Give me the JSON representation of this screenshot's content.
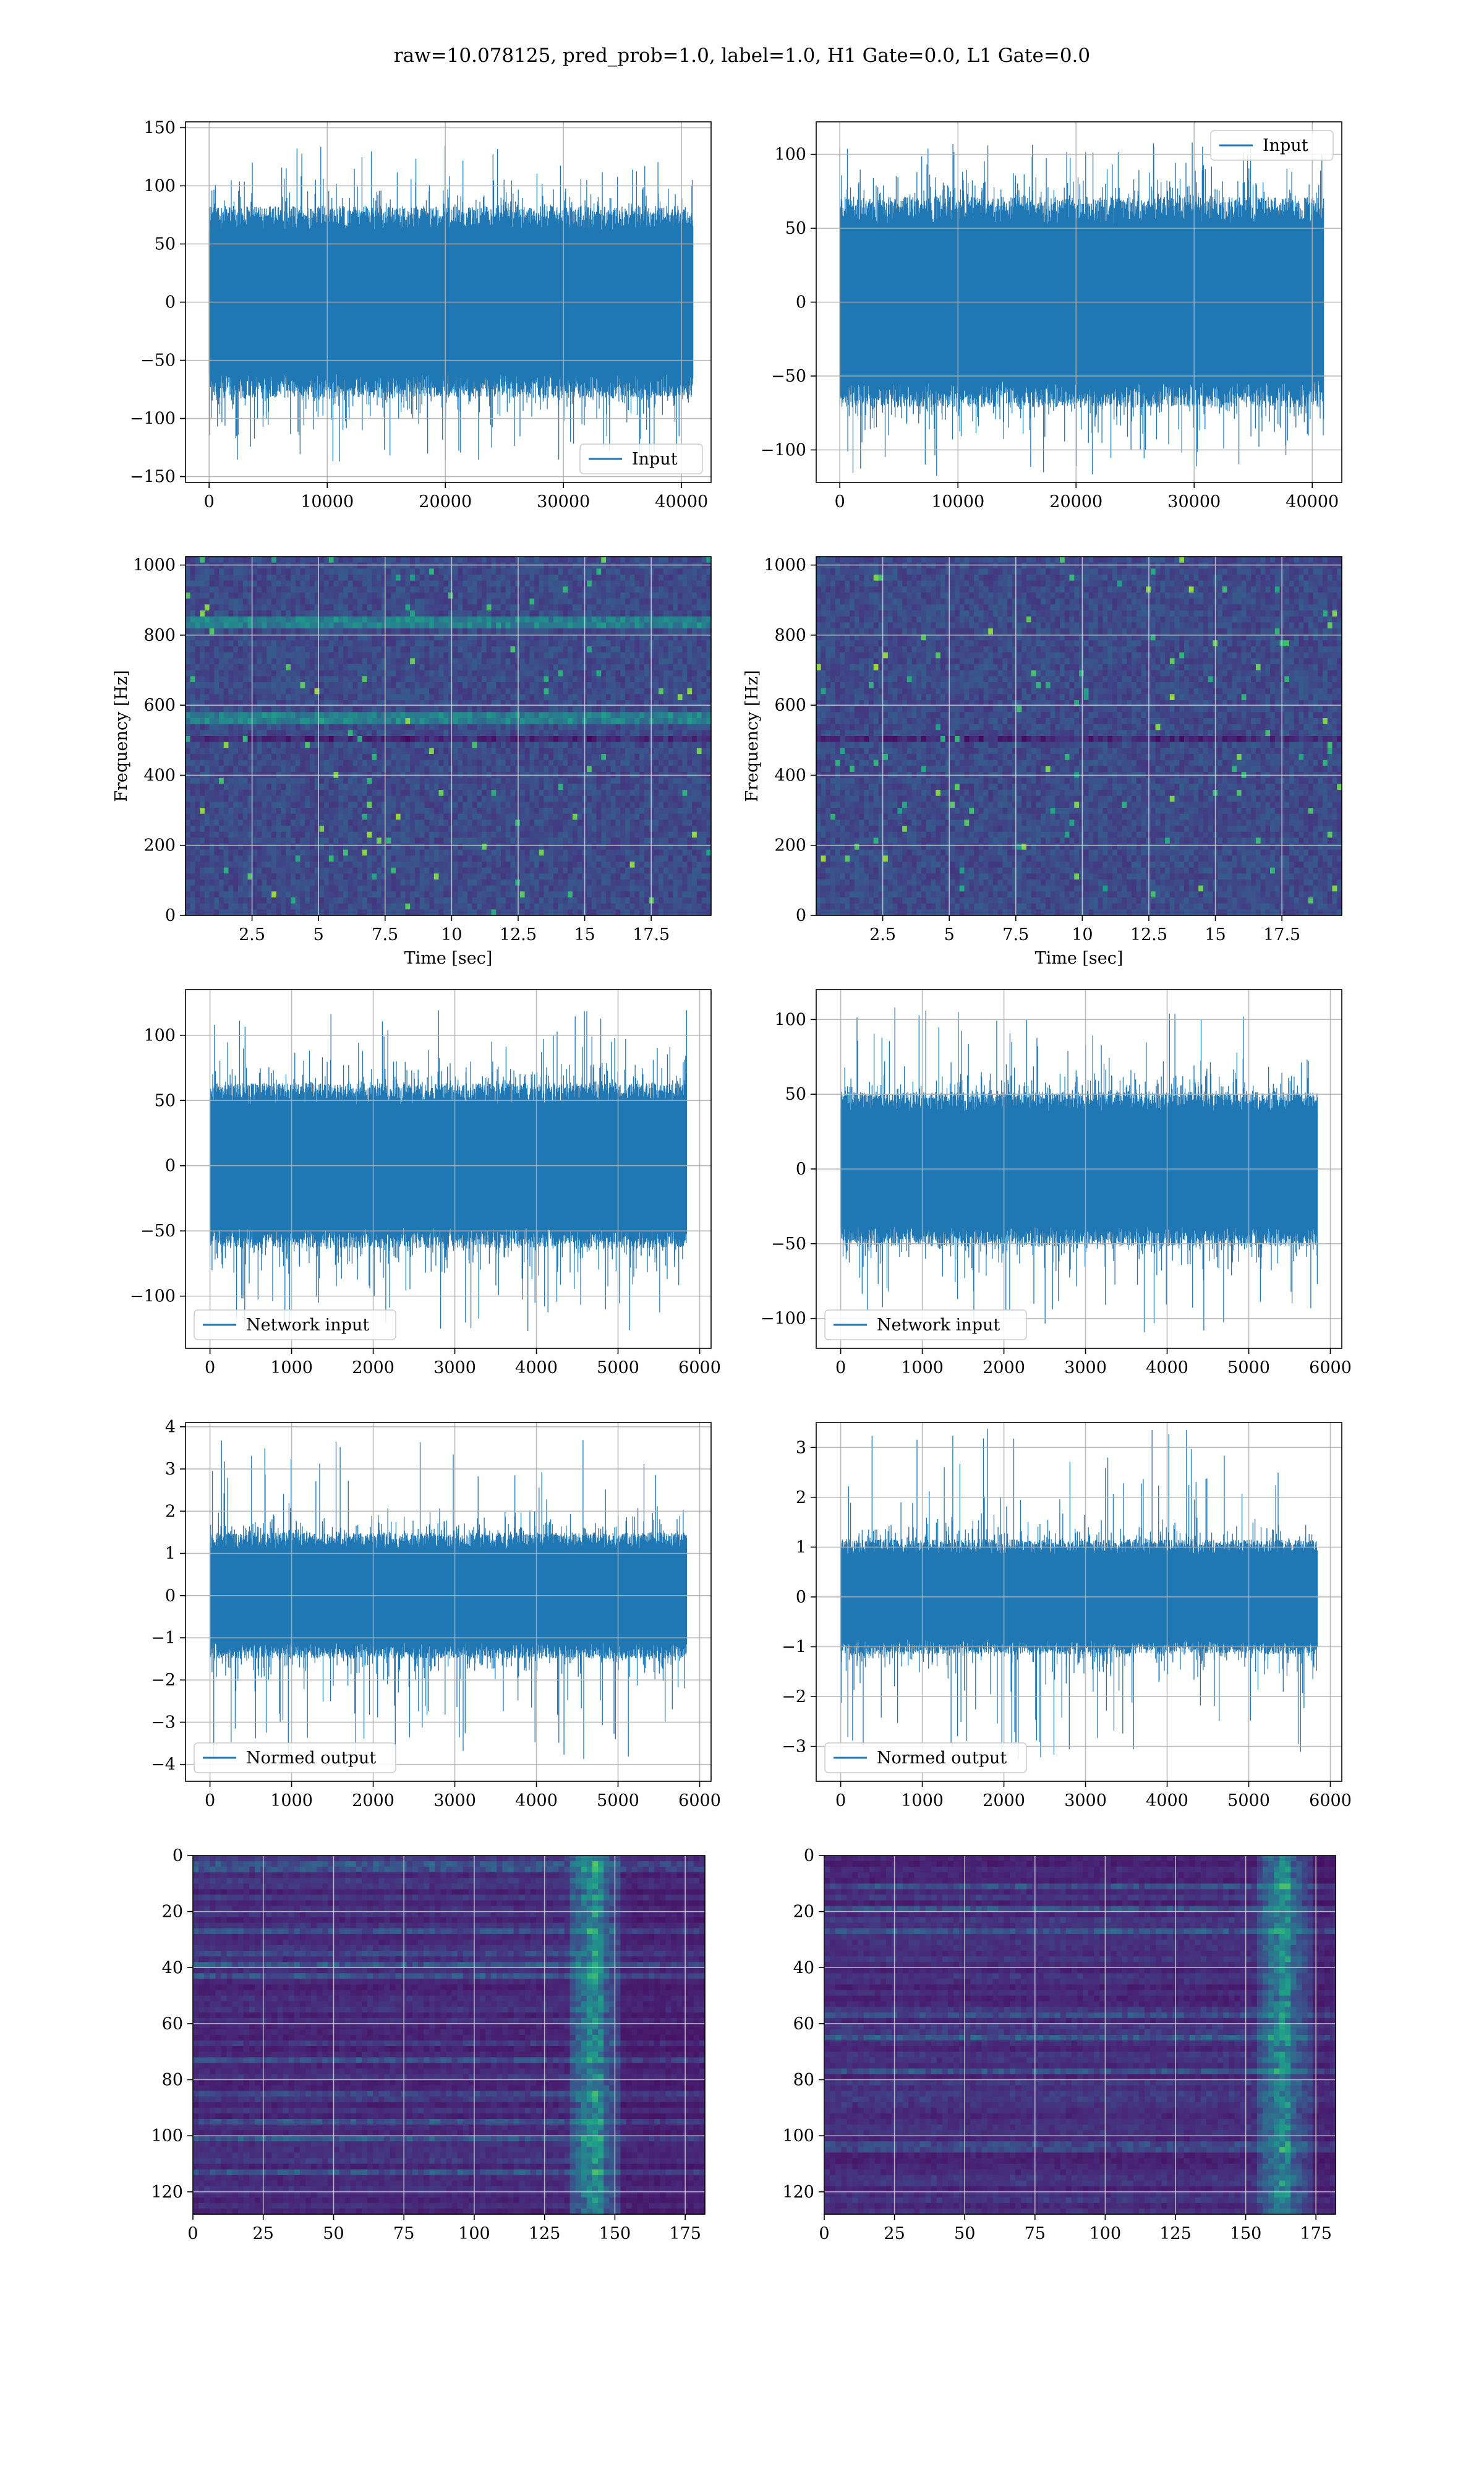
{
  "figure": {
    "title": "raw=10.078125, pred_prob=1.0, label=1.0, H1 Gate=0.0, L1 Gate=0.0"
  },
  "colors": {
    "line": "#1f77b4",
    "grid": "#b0b0b0",
    "axes": "#000000",
    "viridis_dark": "#440154",
    "viridis_bg": "#3b0f70",
    "viridis_teal": "#21918c",
    "viridis_green": "#5ec962",
    "viridis_yellow": "#fde725"
  },
  "chart_data": [
    {
      "id": "input-h1",
      "type": "line",
      "legend": "Input",
      "legend_loc": "lower-right",
      "xlabel": "",
      "ylabel": "",
      "xlim": [
        -2000,
        42500
      ],
      "ylim": [
        -155,
        155
      ],
      "xticks": [
        0,
        10000,
        20000,
        30000,
        40000
      ],
      "yticks": [
        -150,
        -100,
        -50,
        0,
        50,
        100,
        150
      ],
      "series": [
        {
          "x_range": [
            0,
            40960
          ],
          "core": 72,
          "peak_max": 135,
          "peak_min": -140
        }
      ]
    },
    {
      "id": "input-l1",
      "type": "line",
      "legend": "Input",
      "legend_loc": "upper-right",
      "xlabel": "",
      "ylabel": "",
      "xlim": [
        -2000,
        42500
      ],
      "ylim": [
        -122,
        122
      ],
      "xticks": [
        0,
        10000,
        20000,
        30000,
        40000
      ],
      "yticks": [
        -100,
        -50,
        0,
        50,
        100
      ],
      "series": [
        {
          "x_range": [
            0,
            40960
          ],
          "core": 62,
          "peak_max": 108,
          "peak_min": -118
        }
      ]
    },
    {
      "id": "spectrogram-h1",
      "type": "heatmap",
      "xlabel": "Time [sec]",
      "ylabel": "Frequency [Hz]",
      "xlim": [
        0,
        19.75
      ],
      "ylim": [
        0,
        1024
      ],
      "xticks": [
        2.5,
        5.0,
        7.5,
        10.0,
        12.5,
        15.0,
        17.5
      ],
      "yticks": [
        0,
        200,
        400,
        600,
        800,
        1000
      ],
      "bright_lines_hz": [
        840,
        560
      ],
      "dark_lines_hz": [
        500
      ]
    },
    {
      "id": "spectrogram-l1",
      "type": "heatmap",
      "xlabel": "Time [sec]",
      "ylabel": "Frequency [Hz]",
      "xlim": [
        0,
        19.75
      ],
      "ylim": [
        0,
        1024
      ],
      "xticks": [
        2.5,
        5.0,
        7.5,
        10.0,
        12.5,
        15.0,
        17.5
      ],
      "yticks": [
        0,
        200,
        400,
        600,
        800,
        1000
      ],
      "bright_lines_hz": [],
      "dark_lines_hz": [
        500
      ]
    },
    {
      "id": "network-input-h1",
      "type": "line",
      "legend": "Network input",
      "legend_loc": "lower-left",
      "xlabel": "",
      "ylabel": "",
      "xlim": [
        -300,
        6140
      ],
      "ylim": [
        -140,
        135
      ],
      "xticks": [
        0,
        1000,
        2000,
        3000,
        4000,
        5000,
        6000
      ],
      "yticks": [
        -100,
        -50,
        0,
        50,
        100
      ],
      "series": [
        {
          "x_range": [
            0,
            5840
          ],
          "core": 55,
          "peak_max": 120,
          "peak_min": -128
        }
      ]
    },
    {
      "id": "network-input-l1",
      "type": "line",
      "legend": "Network input",
      "legend_loc": "lower-left",
      "xlabel": "",
      "ylabel": "",
      "xlim": [
        -300,
        6140
      ],
      "ylim": [
        -120,
        120
      ],
      "xticks": [
        0,
        1000,
        2000,
        3000,
        4000,
        5000,
        6000
      ],
      "yticks": [
        -100,
        -50,
        0,
        50,
        100
      ],
      "series": [
        {
          "x_range": [
            0,
            5840
          ],
          "core": 45,
          "peak_max": 112,
          "peak_min": -110
        }
      ]
    },
    {
      "id": "normed-output-h1",
      "type": "line",
      "legend": "Normed output",
      "legend_loc": "lower-left",
      "xlabel": "",
      "ylabel": "",
      "xlim": [
        -300,
        6140
      ],
      "ylim": [
        -4.4,
        4.1
      ],
      "xticks": [
        0,
        1000,
        2000,
        3000,
        4000,
        5000,
        6000
      ],
      "yticks": [
        -4,
        -3,
        -2,
        -1,
        0,
        1,
        2,
        3,
        4
      ],
      "series": [
        {
          "x_range": [
            0,
            5840
          ],
          "core": 1.3,
          "peak_max": 3.7,
          "peak_min": -4.0
        }
      ]
    },
    {
      "id": "normed-output-l1",
      "type": "line",
      "legend": "Normed output",
      "legend_loc": "lower-left",
      "xlabel": "",
      "ylabel": "",
      "xlim": [
        -300,
        6140
      ],
      "ylim": [
        -3.7,
        3.5
      ],
      "xticks": [
        0,
        1000,
        2000,
        3000,
        4000,
        5000,
        6000
      ],
      "yticks": [
        -3,
        -2,
        -1,
        0,
        1,
        2,
        3
      ],
      "series": [
        {
          "x_range": [
            0,
            5840
          ],
          "core": 1.0,
          "peak_max": 3.4,
          "peak_min": -3.35
        }
      ]
    },
    {
      "id": "feature-map-h1",
      "type": "heatmap",
      "xlabel": "",
      "ylabel": "",
      "xlim": [
        0,
        182
      ],
      "ylim": [
        128,
        0
      ],
      "xticks": [
        0,
        25,
        50,
        75,
        100,
        125,
        150,
        175
      ],
      "yticks": [
        0,
        20,
        40,
        60,
        80,
        100,
        120
      ],
      "bright_column": 142
    },
    {
      "id": "feature-map-l1",
      "type": "heatmap",
      "xlabel": "",
      "ylabel": "",
      "xlim": [
        0,
        182
      ],
      "ylim": [
        128,
        0
      ],
      "xticks": [
        0,
        25,
        50,
        75,
        100,
        125,
        150,
        175
      ],
      "yticks": [
        0,
        20,
        40,
        60,
        80,
        100,
        120
      ],
      "bright_column": 163
    }
  ]
}
